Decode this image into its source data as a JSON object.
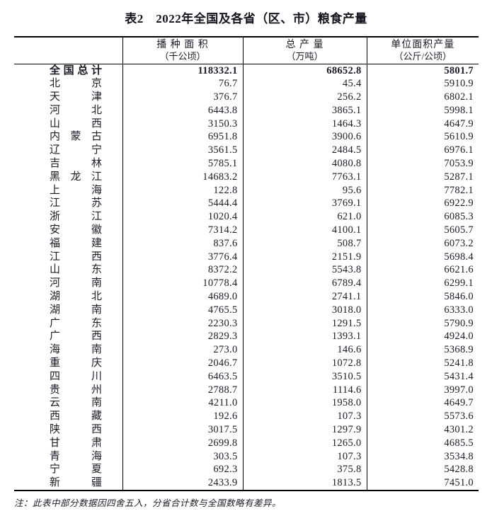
{
  "page": {
    "title": "表2　2022年全国及各省（区、市）粮食产量",
    "note": "注：此表中部分数据因四舍五入，分省合计数与全国数略有差异。"
  },
  "table": {
    "columns": [
      {
        "label": "",
        "unit": ""
      },
      {
        "label": "播 种 面 积",
        "unit": "（千公顷）"
      },
      {
        "label": "总 产 量",
        "unit": "（万吨）"
      },
      {
        "label": "单位面积产量",
        "unit": "（公斤/公顷）"
      }
    ],
    "rows": [
      {
        "region": "全国总计",
        "sown_area": "118332.1",
        "output": "68652.8",
        "yield": "5801.7",
        "bold": true
      },
      {
        "region": "北京",
        "sown_area": "76.7",
        "output": "45.4",
        "yield": "5910.9",
        "bold": false
      },
      {
        "region": "天津",
        "sown_area": "376.7",
        "output": "256.2",
        "yield": "6802.1",
        "bold": false
      },
      {
        "region": "河北",
        "sown_area": "6443.8",
        "output": "3865.1",
        "yield": "5998.1",
        "bold": false
      },
      {
        "region": "山西",
        "sown_area": "3150.3",
        "output": "1464.3",
        "yield": "4647.9",
        "bold": false
      },
      {
        "region": "内蒙古",
        "sown_area": "6951.8",
        "output": "3900.6",
        "yield": "5610.9",
        "bold": false
      },
      {
        "region": "辽宁",
        "sown_area": "3561.5",
        "output": "2484.5",
        "yield": "6976.1",
        "bold": false
      },
      {
        "region": "吉林",
        "sown_area": "5785.1",
        "output": "4080.8",
        "yield": "7053.9",
        "bold": false
      },
      {
        "region": "黑龙江",
        "sown_area": "14683.2",
        "output": "7763.1",
        "yield": "5287.1",
        "bold": false
      },
      {
        "region": "上海",
        "sown_area": "122.8",
        "output": "95.6",
        "yield": "7782.1",
        "bold": false
      },
      {
        "region": "江苏",
        "sown_area": "5444.4",
        "output": "3769.1",
        "yield": "6922.9",
        "bold": false
      },
      {
        "region": "浙江",
        "sown_area": "1020.4",
        "output": "621.0",
        "yield": "6085.3",
        "bold": false
      },
      {
        "region": "安徽",
        "sown_area": "7314.2",
        "output": "4100.1",
        "yield": "5605.7",
        "bold": false
      },
      {
        "region": "福建",
        "sown_area": "837.6",
        "output": "508.7",
        "yield": "6073.2",
        "bold": false
      },
      {
        "region": "江西",
        "sown_area": "3776.4",
        "output": "2151.9",
        "yield": "5698.4",
        "bold": false
      },
      {
        "region": "山东",
        "sown_area": "8372.2",
        "output": "5543.8",
        "yield": "6621.6",
        "bold": false
      },
      {
        "region": "河南",
        "sown_area": "10778.4",
        "output": "6789.4",
        "yield": "6299.1",
        "bold": false
      },
      {
        "region": "湖北",
        "sown_area": "4689.0",
        "output": "2741.1",
        "yield": "5846.0",
        "bold": false
      },
      {
        "region": "湖南",
        "sown_area": "4765.5",
        "output": "3018.0",
        "yield": "6333.0",
        "bold": false
      },
      {
        "region": "广东",
        "sown_area": "2230.3",
        "output": "1291.5",
        "yield": "5790.9",
        "bold": false
      },
      {
        "region": "广西",
        "sown_area": "2829.3",
        "output": "1393.1",
        "yield": "4924.0",
        "bold": false
      },
      {
        "region": "海南",
        "sown_area": "273.0",
        "output": "146.6",
        "yield": "5368.9",
        "bold": false
      },
      {
        "region": "重庆",
        "sown_area": "2046.7",
        "output": "1072.8",
        "yield": "5241.8",
        "bold": false
      },
      {
        "region": "四川",
        "sown_area": "6463.5",
        "output": "3510.5",
        "yield": "5431.4",
        "bold": false
      },
      {
        "region": "贵州",
        "sown_area": "2788.7",
        "output": "1114.6",
        "yield": "3997.0",
        "bold": false
      },
      {
        "region": "云南",
        "sown_area": "4211.0",
        "output": "1958.0",
        "yield": "4649.7",
        "bold": false
      },
      {
        "region": "西藏",
        "sown_area": "192.6",
        "output": "107.3",
        "yield": "5573.6",
        "bold": false
      },
      {
        "region": "陕西",
        "sown_area": "3017.5",
        "output": "1297.9",
        "yield": "4301.2",
        "bold": false
      },
      {
        "region": "甘肃",
        "sown_area": "2699.8",
        "output": "1265.0",
        "yield": "4685.5",
        "bold": false
      },
      {
        "region": "青海",
        "sown_area": "303.5",
        "output": "107.3",
        "yield": "3534.8",
        "bold": false
      },
      {
        "region": "宁夏",
        "sown_area": "692.3",
        "output": "375.8",
        "yield": "5428.8",
        "bold": false
      },
      {
        "region": "新疆",
        "sown_area": "2433.9",
        "output": "1813.5",
        "yield": "7451.0",
        "bold": false
      }
    ]
  }
}
